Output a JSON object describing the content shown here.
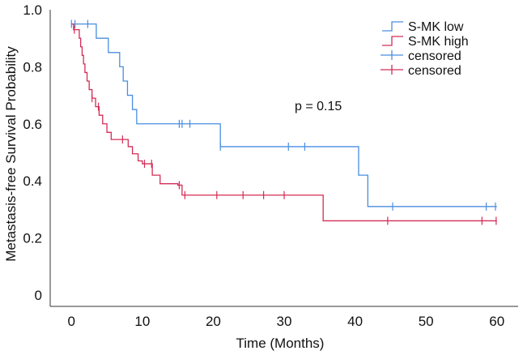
{
  "chart_data": {
    "type": "line",
    "subtype": "kaplan-meier",
    "title": "",
    "xlabel": "Time (Months)",
    "ylabel": "Metastasis-free Survival Probability",
    "xlim": [
      -3,
      63
    ],
    "ylim": [
      -0.04,
      1.0
    ],
    "xticks": [
      0,
      10,
      20,
      30,
      40,
      50,
      60
    ],
    "yticks": [
      0,
      0.2,
      0.4,
      0.6,
      0.8,
      1.0
    ],
    "ytick_labels": [
      "0",
      "0.2",
      "0.4",
      "0.6",
      "0.8",
      "1.0"
    ],
    "grid": false,
    "legend_position": "top-right",
    "annotation": "p = 0.15",
    "series": [
      {
        "name": "S-MK low",
        "color": "#4a8ee0",
        "steps": [
          [
            0,
            0.95
          ],
          [
            2.8,
            0.95
          ],
          [
            3.5,
            0.9
          ],
          [
            5.2,
            0.85
          ],
          [
            6.8,
            0.8
          ],
          [
            7.3,
            0.75
          ],
          [
            7.9,
            0.7
          ],
          [
            8.6,
            0.65
          ],
          [
            9.2,
            0.6
          ],
          [
            21,
            0.52
          ],
          [
            40.5,
            0.42
          ],
          [
            41.8,
            0.31
          ],
          [
            60,
            0.31
          ]
        ],
        "censored": [
          0,
          0.5,
          2.3,
          15.2,
          15.6,
          16.7,
          21,
          30.6,
          32.9,
          45.3,
          58.5,
          59.8
        ]
      },
      {
        "name": "S-MK high",
        "color": "#d42c56",
        "steps": [
          [
            0,
            0.95
          ],
          [
            0.3,
            0.93
          ],
          [
            1.1,
            0.9
          ],
          [
            1.3,
            0.87
          ],
          [
            1.5,
            0.84
          ],
          [
            1.7,
            0.81
          ],
          [
            1.9,
            0.78
          ],
          [
            2.2,
            0.75
          ],
          [
            2.5,
            0.72
          ],
          [
            2.9,
            0.69
          ],
          [
            3.4,
            0.66
          ],
          [
            3.9,
            0.63
          ],
          [
            4.4,
            0.6
          ],
          [
            5.0,
            0.57
          ],
          [
            5.6,
            0.545
          ],
          [
            8.0,
            0.52
          ],
          [
            8.6,
            0.495
          ],
          [
            9.4,
            0.47
          ],
          [
            10.0,
            0.46
          ],
          [
            11.4,
            0.42
          ],
          [
            12.5,
            0.39
          ],
          [
            15.0,
            0.385
          ],
          [
            15.6,
            0.35
          ],
          [
            35.5,
            0.26
          ],
          [
            60,
            0.26
          ]
        ],
        "censored": [
          0.4,
          2.9,
          3.8,
          7.2,
          10.3,
          11.3,
          15.2,
          16.0,
          20.5,
          24.2,
          27.1,
          30.0,
          44.6,
          57.9,
          59.9
        ]
      }
    ],
    "legend": [
      {
        "label": "S-MK low",
        "kind": "line",
        "color": "#4a8ee0"
      },
      {
        "label": "S-MK high",
        "kind": "line",
        "color": "#d42c56"
      },
      {
        "label": "censored",
        "kind": "censor",
        "color": "#4a8ee0"
      },
      {
        "label": "censored",
        "kind": "censor",
        "color": "#d42c56"
      }
    ]
  }
}
